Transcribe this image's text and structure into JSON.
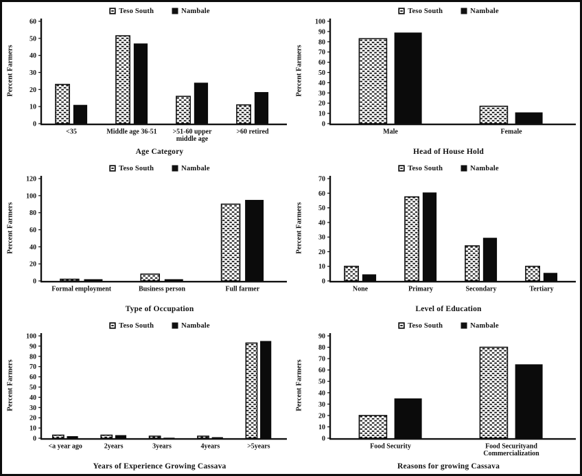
{
  "figure": {
    "ylabel_shared": "Percent Farmers",
    "series_names": [
      "Teso South",
      "Nambale"
    ],
    "colors": {
      "bar_solid": "#0b0b0b",
      "bar_pattern_fg": "#111111",
      "bar_pattern_bg": "#ffffff",
      "axis": "#111111",
      "frame": "#0d0d0d",
      "background": "#ffffff"
    }
  },
  "chart_data": [
    {
      "type": "bar",
      "xlabel": "Age Category",
      "ylabel": "Percent Farmers",
      "ylim": [
        0,
        60
      ],
      "ytick_step": 10,
      "grid": false,
      "legend_position": "top-center",
      "categories": [
        "<35",
        "Middle age 36-51",
        [
          ">51-60 upper",
          "middle age"
        ],
        [
          ">60 retired"
        ]
      ],
      "series": [
        {
          "name": "Teso South",
          "values": [
            23,
            51.5,
            16,
            11
          ]
        },
        {
          "name": "Nambale",
          "values": [
            11,
            47,
            24,
            18.5
          ]
        }
      ]
    },
    {
      "type": "bar",
      "xlabel": "Head of House Hold",
      "ylabel": "Percent Farmers",
      "ylim": [
        0,
        100
      ],
      "ytick_step": 10,
      "grid": false,
      "legend_position": "top-center",
      "categories": [
        "Male",
        "Female"
      ],
      "series": [
        {
          "name": "Teso South",
          "values": [
            83,
            17
          ]
        },
        {
          "name": "Nambale",
          "values": [
            89,
            11
          ]
        }
      ]
    },
    {
      "type": "bar",
      "xlabel": "Type of Occupation",
      "ylabel": "Percent Farmers",
      "ylim": [
        0,
        120
      ],
      "ytick_step": 20,
      "grid": false,
      "legend_position": "top-center",
      "categories": [
        "Formal employment",
        "Business person",
        "Full farmer"
      ],
      "series": [
        {
          "name": "Teso South",
          "values": [
            2,
            8,
            90
          ]
        },
        {
          "name": "Nambale",
          "values": [
            2,
            2,
            95
          ]
        }
      ]
    },
    {
      "type": "bar",
      "xlabel": "Level of Education",
      "ylabel": "Percent Farmers",
      "ylim": [
        0,
        70
      ],
      "ytick_step": 10,
      "grid": false,
      "legend_position": "top-center",
      "categories": [
        "None",
        "Primary",
        "Secondary",
        "Tertiary"
      ],
      "series": [
        {
          "name": "Teso South",
          "values": [
            10,
            57.5,
            24,
            10
          ]
        },
        {
          "name": "Nambale",
          "values": [
            4.5,
            60.5,
            29.5,
            5.5
          ]
        }
      ]
    },
    {
      "type": "bar",
      "xlabel": "Years of Experience Growing Cassava",
      "ylabel": "Percent Farmers",
      "ylim": [
        0,
        100
      ],
      "ytick_step": 10,
      "grid": false,
      "legend_position": "top-center",
      "categories": [
        "<a year ago",
        "2years",
        "3years",
        "4years",
        ">5years"
      ],
      "series": [
        {
          "name": "Teso South",
          "values": [
            3,
            3,
            2,
            2,
            93
          ]
        },
        {
          "name": "Nambale",
          "values": [
            2,
            3,
            0.5,
            1,
            95
          ]
        }
      ]
    },
    {
      "type": "bar",
      "xlabel": "Reasons for growing Cassava",
      "ylabel": "Percent Farmers",
      "ylim": [
        0,
        90
      ],
      "ytick_step": 10,
      "grid": false,
      "legend_position": "top-center",
      "categories": [
        "Food Security",
        [
          "Food Securityand",
          "Commercialization"
        ]
      ],
      "series": [
        {
          "name": "Teso South",
          "values": [
            20,
            80
          ]
        },
        {
          "name": "Nambale",
          "values": [
            35,
            65
          ]
        }
      ]
    }
  ]
}
